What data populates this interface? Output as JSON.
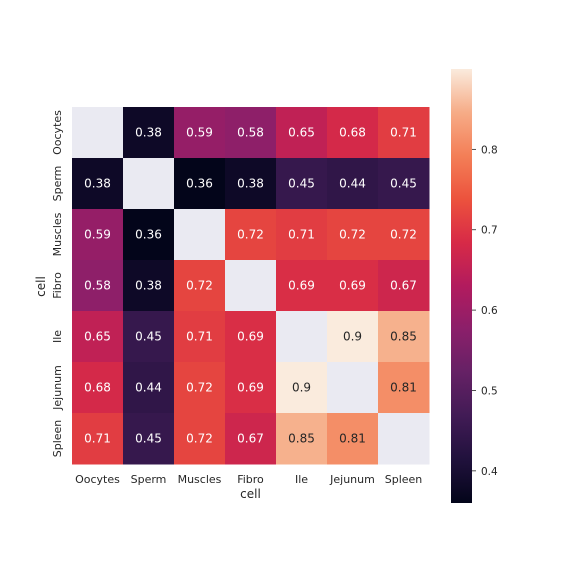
{
  "chart_data": {
    "type": "heatmap",
    "title": "",
    "xlabel": "cell",
    "ylabel": "cell",
    "categories": [
      "Oocytes",
      "Sperm",
      "Muscles",
      "Fibro",
      "Ile",
      "Jejunum",
      "Spleen"
    ],
    "values": [
      [
        null,
        0.38,
        0.59,
        0.58,
        0.65,
        0.68,
        0.71
      ],
      [
        0.38,
        null,
        0.36,
        0.38,
        0.45,
        0.44,
        0.45
      ],
      [
        0.59,
        0.36,
        null,
        0.72,
        0.71,
        0.72,
        0.72
      ],
      [
        0.58,
        0.38,
        0.72,
        null,
        0.69,
        0.69,
        0.67
      ],
      [
        0.65,
        0.45,
        0.71,
        0.69,
        null,
        0.9,
        0.85
      ],
      [
        0.68,
        0.44,
        0.72,
        0.69,
        0.9,
        null,
        0.81
      ],
      [
        0.71,
        0.45,
        0.72,
        0.67,
        0.85,
        0.81,
        null
      ]
    ],
    "value_labels": [
      [
        "",
        "0.38",
        "0.59",
        "0.58",
        "0.65",
        "0.68",
        "0.71"
      ],
      [
        "0.38",
        "",
        "0.36",
        "0.38",
        "0.45",
        "0.44",
        "0.45"
      ],
      [
        "0.59",
        "0.36",
        "",
        "0.72",
        "0.71",
        "0.72",
        "0.72"
      ],
      [
        "0.58",
        "0.38",
        "0.72",
        "",
        "0.69",
        "0.69",
        "0.67"
      ],
      [
        "0.65",
        "0.45",
        "0.71",
        "0.69",
        "",
        "0.9",
        "0.85"
      ],
      [
        "0.68",
        "0.44",
        "0.72",
        "0.69",
        "0.9",
        "",
        "0.81"
      ],
      [
        "0.71",
        "0.45",
        "0.72",
        "0.67",
        "0.85",
        "0.81",
        ""
      ]
    ],
    "colorscale": "rocket",
    "missing_color": "#eaeaf2",
    "colorbar": {
      "range": [
        0.36,
        0.9
      ],
      "ticks": [
        0.4,
        0.5,
        0.6,
        0.7,
        0.8
      ],
      "tick_labels": [
        "0.4",
        "0.5",
        "0.6",
        "0.7",
        "0.8"
      ],
      "placement": "right"
    },
    "grid": false
  }
}
